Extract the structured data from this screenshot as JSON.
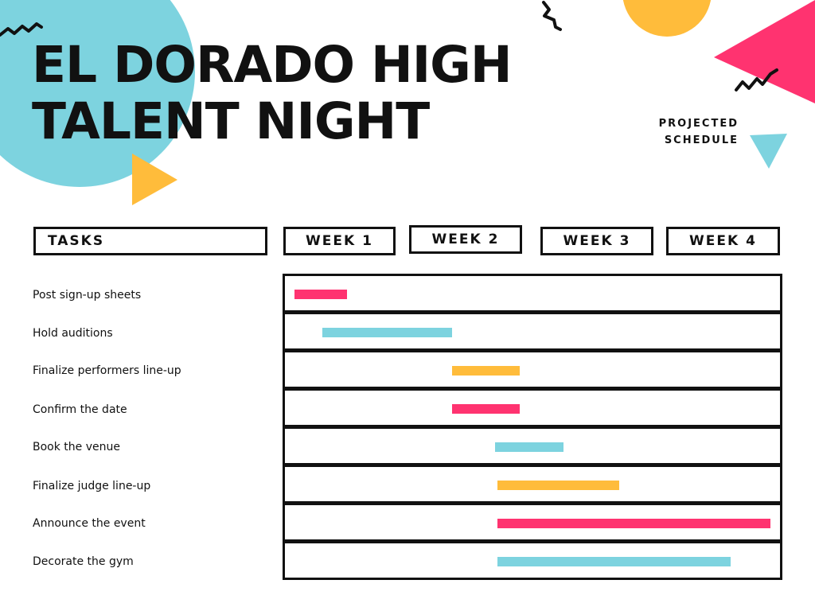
{
  "header": {
    "title_line_1": "EL DORADO HIGH",
    "title_line_2": "TALENT NIGHT",
    "subtitle_line_1": "PROJECTED",
    "subtitle_line_2": "SCHEDULE"
  },
  "colors": {
    "pink": "#ff3370",
    "blue": "#7dd3df",
    "yellow": "#ffbc3b",
    "ink": "#111111"
  },
  "chart_data": {
    "type": "gantt",
    "x_unit": "week",
    "xlim": [
      0,
      4
    ],
    "columns": [
      "TASKS",
      "WEEK 1",
      "WEEK 2",
      "WEEK 3",
      "WEEK 4"
    ],
    "tasks": [
      {
        "label": "Post sign-up sheets",
        "start": 0.08,
        "end": 0.5,
        "color": "pink"
      },
      {
        "label": "Hold auditions",
        "start": 0.3,
        "end": 1.35,
        "color": "blue"
      },
      {
        "label": "Finalize performers line-up",
        "start": 1.35,
        "end": 1.9,
        "color": "yellow"
      },
      {
        "label": "Confirm the date",
        "start": 1.35,
        "end": 1.9,
        "color": "pink"
      },
      {
        "label": "Book the venue",
        "start": 1.7,
        "end": 2.25,
        "color": "blue"
      },
      {
        "label": "Finalize judge line-up",
        "start": 1.72,
        "end": 2.7,
        "color": "yellow"
      },
      {
        "label": "Announce the event",
        "start": 1.72,
        "end": 3.92,
        "color": "pink"
      },
      {
        "label": "Decorate the gym",
        "start": 1.72,
        "end": 3.6,
        "color": "blue"
      }
    ]
  }
}
